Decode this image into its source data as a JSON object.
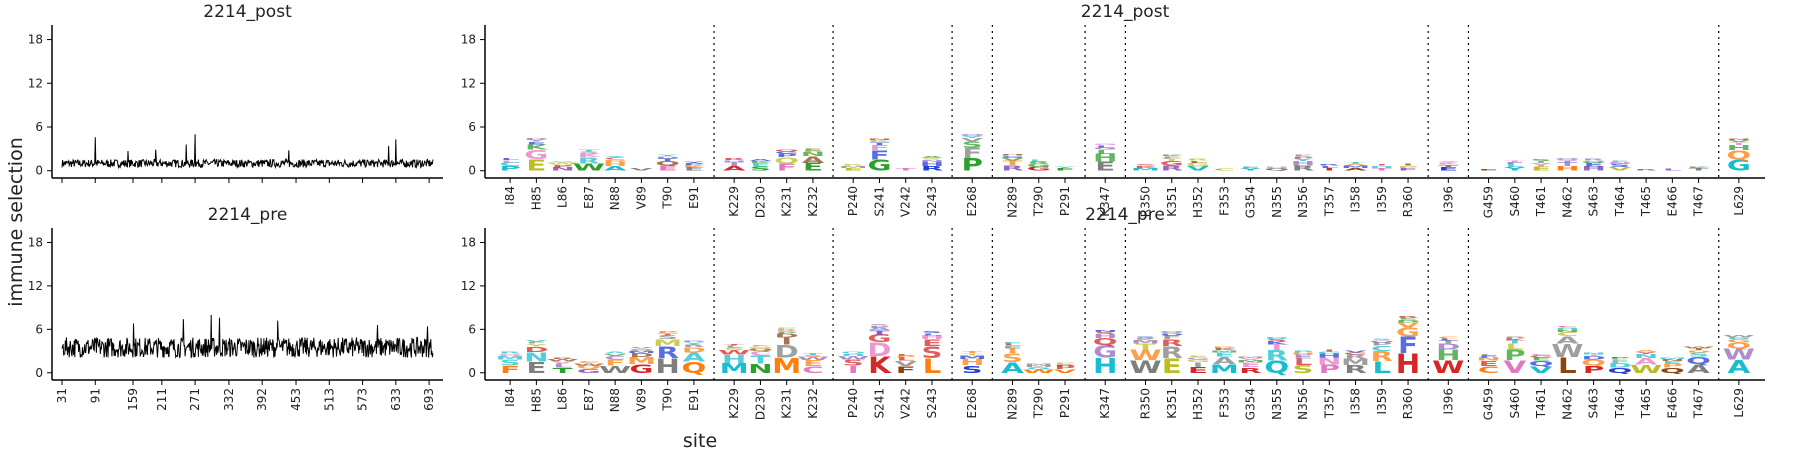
{
  "figure": {
    "ylabel": "immune selection",
    "xlabel": "site"
  },
  "chart_data": [
    {
      "type": "line",
      "title": "2214_post",
      "ylim": [
        -1,
        20
      ],
      "yticks": [
        0,
        6,
        12,
        18
      ],
      "xticks": [
        "31",
        "91",
        "159",
        "211",
        "271",
        "332",
        "392",
        "453",
        "513",
        "573",
        "633",
        "693"
      ],
      "xlim": [
        31,
        700
      ],
      "series": [
        {
          "baseline": 1.0,
          "noise": 0.55,
          "spikes": [
            [
              91,
              4.6
            ],
            [
              271,
              5.0
            ],
            [
              255,
              3.6
            ],
            [
              633,
              4.3
            ],
            [
              620,
              3.4
            ],
            [
              200,
              2.9
            ],
            [
              440,
              2.8
            ],
            [
              150,
              2.7
            ]
          ]
        }
      ]
    },
    {
      "type": "line",
      "title": "2214_pre",
      "ylim": [
        -1,
        20
      ],
      "yticks": [
        0,
        6,
        12,
        18
      ],
      "xticks": [
        "31",
        "91",
        "159",
        "211",
        "271",
        "332",
        "392",
        "453",
        "513",
        "573",
        "633",
        "693"
      ],
      "xlim": [
        31,
        700
      ],
      "series": [
        {
          "baseline": 3.5,
          "noise": 1.4,
          "spikes": [
            [
              300,
              8.0
            ],
            [
              315,
              7.6
            ],
            [
              250,
              7.4
            ],
            [
              420,
              7.2
            ],
            [
              160,
              6.8
            ],
            [
              600,
              6.6
            ],
            [
              690,
              6.4
            ]
          ]
        }
      ]
    },
    {
      "type": "logo",
      "title": "2214_post",
      "ylim": [
        -1,
        20
      ],
      "yticks": [
        0,
        6,
        12,
        18
      ],
      "sites": [
        "I84",
        "H85",
        "L86",
        "E87",
        "N88",
        "V89",
        "T90",
        "E91",
        "K229",
        "D230",
        "K231",
        "K232",
        "P240",
        "S241",
        "V242",
        "S243",
        "E268",
        "N289",
        "T290",
        "P291",
        "K347",
        "R350",
        "K351",
        "H352",
        "F353",
        "G354",
        "N355",
        "N356",
        "T357",
        "I358",
        "I359",
        "R360",
        "I396",
        "G459",
        "S460",
        "T461",
        "N462",
        "S463",
        "T464",
        "T465",
        "E466",
        "T467",
        "L629"
      ],
      "heights": [
        1.8,
        4.5,
        1.3,
        2.9,
        1.9,
        0.4,
        2.1,
        1.2,
        1.8,
        1.6,
        2.9,
        3.1,
        0.9,
        4.4,
        0.4,
        1.9,
        5.0,
        2.2,
        1.5,
        0.6,
        3.6,
        0.8,
        2.1,
        1.7,
        0.3,
        0.6,
        0.6,
        2.1,
        0.9,
        1.1,
        0.8,
        1.0,
        1.3,
        0.2,
        1.4,
        1.6,
        1.8,
        1.7,
        1.4,
        0.2,
        0.3,
        0.5,
        4.4
      ],
      "top_letters": [
        "",
        "E",
        "",
        "",
        "A",
        "",
        "E",
        "",
        "",
        "",
        "",
        "E",
        "",
        "G",
        "",
        "R",
        "P",
        "R",
        "",
        "",
        "E",
        "",
        "R",
        "",
        "",
        "",
        "",
        "R",
        "",
        "",
        "",
        "",
        "",
        "",
        "",
        "",
        "",
        "",
        "V",
        "",
        "",
        "",
        "G"
      ],
      "group_breaks_after": [
        "E91",
        "K232",
        "S243",
        "E268",
        "P291",
        "K347",
        "R360",
        "I396",
        "T467"
      ]
    },
    {
      "type": "logo",
      "title": "2214_pre",
      "ylim": [
        -1,
        20
      ],
      "yticks": [
        0,
        6,
        12,
        18
      ],
      "sites": [
        "I84",
        "H85",
        "L86",
        "E87",
        "N88",
        "V89",
        "T90",
        "E91",
        "K229",
        "D230",
        "K231",
        "K232",
        "P240",
        "S241",
        "V242",
        "S243",
        "E268",
        "N289",
        "T290",
        "P291",
        "K347",
        "R350",
        "K351",
        "H352",
        "F353",
        "G354",
        "N355",
        "N356",
        "T357",
        "I358",
        "I359",
        "R360",
        "I396",
        "G459",
        "S460",
        "T461",
        "N462",
        "S463",
        "T464",
        "T465",
        "E466",
        "T467",
        "L629"
      ],
      "heights": [
        2.9,
        4.5,
        2.0,
        1.6,
        2.9,
        3.4,
        5.8,
        4.4,
        3.9,
        3.7,
        6.1,
        2.7,
        2.9,
        6.6,
        2.6,
        5.8,
        3.0,
        4.2,
        1.2,
        1.4,
        6.0,
        5.0,
        5.8,
        2.3,
        3.5,
        2.2,
        4.9,
        3.1,
        3.3,
        3.1,
        4.7,
        7.8,
        5.0,
        2.6,
        5.0,
        2.6,
        6.3,
        2.8,
        2.1,
        3.2,
        2.0,
        3.5,
        5.2
      ],
      "top_letters": [
        "",
        "E",
        "",
        "",
        "W",
        "G",
        "H",
        "Q",
        "M",
        "N",
        "M",
        "",
        "",
        "K",
        "",
        "L",
        "",
        "",
        "",
        "",
        "H",
        "W",
        "E",
        "",
        "M",
        "",
        "Q",
        "",
        "P",
        "R",
        "L",
        "H",
        "W",
        "",
        "V",
        "",
        "L",
        "P",
        "Q",
        "W",
        "",
        "A",
        ""
      ],
      "group_breaks_after": [
        "E91",
        "K232",
        "S243",
        "E268",
        "P291",
        "K347",
        "R360",
        "I396",
        "T467"
      ]
    }
  ]
}
